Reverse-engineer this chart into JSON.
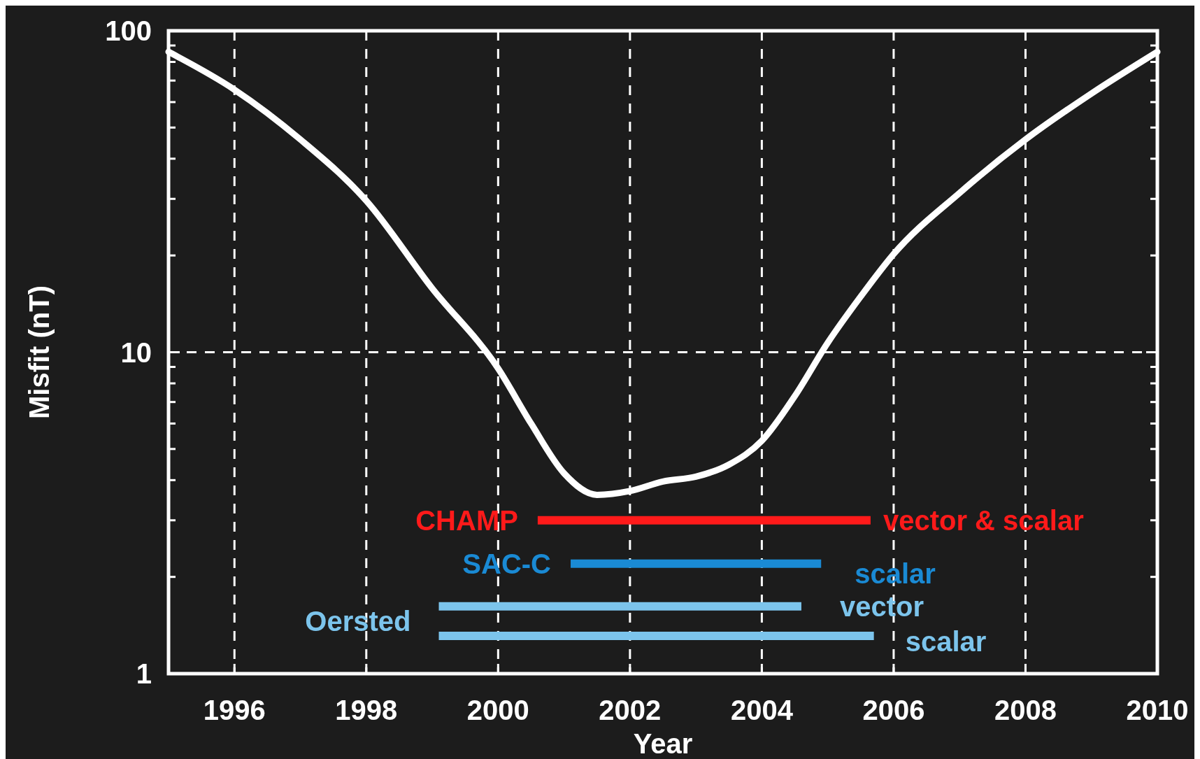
{
  "chart_data": {
    "type": "line",
    "xlabel": "Year",
    "ylabel": "Misfit (nT)",
    "log": "y",
    "grid": true,
    "line_style": "solid",
    "marker": "none",
    "xlim": [
      1995,
      2010
    ],
    "xticks": [
      1996,
      1998,
      2000,
      2002,
      2004,
      2006,
      2008,
      2010
    ],
    "ylim": [
      1,
      100
    ],
    "yticks": [
      1,
      {
        "value": 2,
        "label": null
      },
      {
        "value": 3,
        "label": null
      },
      {
        "value": 4,
        "label": null
      },
      {
        "value": 5,
        "label": null
      },
      {
        "value": 6,
        "label": null
      },
      {
        "value": 7,
        "label": null
      },
      {
        "value": 8,
        "label": null
      },
      {
        "value": 9,
        "label": null
      },
      10,
      {
        "value": 20,
        "label": null
      },
      {
        "value": 30,
        "label": null
      },
      {
        "value": 40,
        "label": null
      },
      {
        "value": 50,
        "label": null
      },
      {
        "value": 60,
        "label": null
      },
      {
        "value": 70,
        "label": null
      },
      {
        "value": 80,
        "label": null
      },
      {
        "value": 90,
        "label": null
      },
      100
    ],
    "series": [
      {
        "color": "#ffffff",
        "x": [
          1995,
          1996,
          1997,
          1998,
          1999,
          2000,
          2000.5,
          2001,
          2001.5,
          2002,
          2002.5,
          2003,
          2003.5,
          2004,
          2004.5,
          2005,
          2005.5,
          2006,
          2007,
          2008,
          2009,
          2010
        ],
        "values": [
          86,
          65.6,
          45.9,
          29.6,
          15.8,
          8.9,
          6.0,
          4.2,
          3.6,
          3.7,
          3.96,
          4.1,
          4.47,
          5.3,
          7.3,
          10.7,
          14.9,
          20.2,
          31.3,
          45.9,
          63.8,
          86
        ]
      },
      {
        "name": "CHAMP",
        "color": "#ff1a1a",
        "x": [
          2000.6,
          2005.65
        ],
        "values": [
          3.0,
          3.0
        ]
      },
      {
        "name": "SAC-C",
        "color": "#1a8ad4",
        "x": [
          2001.1,
          2004.9
        ],
        "values": [
          2.2,
          2.2
        ]
      },
      {
        "color": "#7cc4ec",
        "x": [
          1999.1,
          2004.6
        ],
        "values": [
          1.62,
          1.62
        ]
      },
      {
        "color": "#7cc4ec",
        "x": [
          1999.1,
          2005.7
        ],
        "values": [
          1.31,
          1.31
        ]
      }
    ],
    "annotations": [
      "vector & scalar",
      "scalar",
      "vector",
      "scalar",
      "Oersted"
    ]
  }
}
